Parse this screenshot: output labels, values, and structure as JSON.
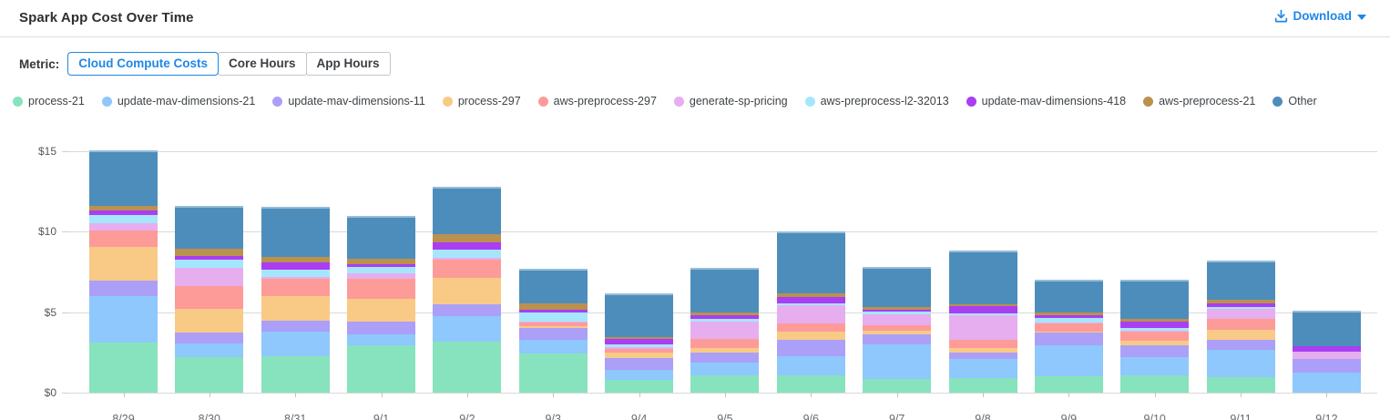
{
  "header": {
    "title": "Spark App Cost Over Time",
    "download": {
      "label": "Download",
      "icon": "download-icon",
      "caret_icon": "caret-down-icon",
      "color": "#1f87e8"
    }
  },
  "toolbar": {
    "metric_label": "Metric:",
    "metrics": [
      {
        "label": "Cloud Compute Costs",
        "selected": true
      },
      {
        "label": "Core Hours",
        "selected": false
      },
      {
        "label": "App Hours",
        "selected": false
      }
    ]
  },
  "chart_data": {
    "type": "bar",
    "stacked": true,
    "title": "Spark App Cost Over Time",
    "xlabel": "",
    "ylabel": "",
    "ylim": [
      0,
      15
    ],
    "grid": true,
    "legend_position": "top",
    "y_ticks": [
      {
        "label": "$0",
        "value": 0
      },
      {
        "label": "$5",
        "value": 5
      },
      {
        "label": "$10",
        "value": 10
      },
      {
        "label": "$15",
        "value": 15
      }
    ],
    "categories": [
      "8/29",
      "8/30",
      "8/31",
      "9/1",
      "9/2",
      "9/3",
      "9/4",
      "9/5",
      "9/6",
      "9/7",
      "9/8",
      "9/9",
      "9/10",
      "9/11",
      "9/12"
    ],
    "series": [
      {
        "name": "process-21",
        "color": "#87e3bd",
        "values": [
          3.12,
          2.2,
          2.27,
          2.95,
          3.18,
          2.45,
          0.78,
          1.06,
          1.1,
          0.87,
          0.91,
          1.0,
          1.06,
          0.95,
          0
        ]
      },
      {
        "name": "update-mav-dimensions-21",
        "color": "#8ec8fc",
        "values": [
          2.86,
          0.83,
          1.51,
          0.66,
          1.55,
          0.83,
          0.64,
          0.8,
          1.14,
          2.12,
          1.17,
          1.95,
          1.17,
          1.7,
          1.25
        ]
      },
      {
        "name": "update-mav-dimensions-11",
        "color": "#ab9ff8",
        "values": [
          0.98,
          0.72,
          0.72,
          0.8,
          0.76,
          0.72,
          0.76,
          0.66,
          1.04,
          0.63,
          0.44,
          0.78,
          0.72,
          0.63,
          0.83
        ]
      },
      {
        "name": "process-297",
        "color": "#f9ca86",
        "values": [
          2.08,
          1.48,
          1.48,
          1.42,
          1.63,
          0.15,
          0.32,
          0.28,
          0.53,
          0.23,
          0.28,
          0.05,
          0.27,
          0.6,
          0
        ]
      },
      {
        "name": "aws-preprocess-297",
        "color": "#fd9b98",
        "values": [
          1.04,
          1.4,
          1.12,
          1.23,
          1.14,
          0.2,
          0.24,
          0.57,
          0.51,
          0.34,
          0.47,
          0.51,
          0.57,
          0.7,
          0
        ]
      },
      {
        "name": "generate-sp-pricing",
        "color": "#e6aeee",
        "values": [
          0.44,
          1.1,
          0.1,
          0.34,
          0.1,
          0.05,
          0.08,
          1.04,
          1.1,
          0.7,
          1.52,
          0.05,
          0.05,
          0.65,
          0.49
        ]
      },
      {
        "name": "aws-preprocess-l2-32013",
        "color": "#a6e6fc",
        "values": [
          0.55,
          0.53,
          0.47,
          0.42,
          0.51,
          0.6,
          0.19,
          0.19,
          0.13,
          0.13,
          0.15,
          0.28,
          0.19,
          0.12,
          0
        ]
      },
      {
        "name": "update-mav-dimensions-418",
        "color": "#a93ef2",
        "values": [
          0.28,
          0.26,
          0.45,
          0.19,
          0.47,
          0.15,
          0.36,
          0.19,
          0.42,
          0.13,
          0.42,
          0.19,
          0.38,
          0.2,
          0.32
        ]
      },
      {
        "name": "aws-preprocess-21",
        "color": "#ba914e",
        "values": [
          0.28,
          0.44,
          0.34,
          0.32,
          0.51,
          0.38,
          0.1,
          0.19,
          0.19,
          0.19,
          0.15,
          0.19,
          0.19,
          0.23,
          0
        ]
      },
      {
        "name": "Other",
        "color": "#4d8dbc",
        "values": [
          3.45,
          2.65,
          3.09,
          2.63,
          2.95,
          2.2,
          2.69,
          2.8,
          3.88,
          2.46,
          3.3,
          2.05,
          2.4,
          2.42,
          2.18
        ]
      }
    ]
  }
}
